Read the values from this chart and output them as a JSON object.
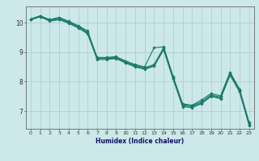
{
  "xlabel": "Humidex (Indice chaleur)",
  "bg_color": "#cce8e8",
  "grid_color": "#aacccc",
  "line_color": "#1a7a6a",
  "xlim": [
    -0.5,
    23.5
  ],
  "ylim": [
    6.4,
    10.55
  ],
  "yticks": [
    7,
    8,
    9,
    10
  ],
  "xticks": [
    0,
    1,
    2,
    3,
    4,
    5,
    6,
    7,
    8,
    9,
    10,
    11,
    12,
    13,
    14,
    15,
    16,
    17,
    18,
    19,
    20,
    21,
    22,
    23
  ],
  "series": [
    [
      10.12,
      10.23,
      10.1,
      10.18,
      10.05,
      9.9,
      9.72,
      8.82,
      8.82,
      8.85,
      8.7,
      8.58,
      8.5,
      9.15,
      9.18,
      8.18,
      7.25,
      7.2,
      7.38,
      7.6,
      7.52,
      8.32,
      7.75,
      6.62
    ],
    [
      10.12,
      10.23,
      10.1,
      10.15,
      10.02,
      9.88,
      9.68,
      8.8,
      8.8,
      8.82,
      8.67,
      8.55,
      8.47,
      8.58,
      9.15,
      8.15,
      7.22,
      7.18,
      7.32,
      7.55,
      7.48,
      8.28,
      7.7,
      6.58
    ],
    [
      10.1,
      10.2,
      10.08,
      10.12,
      10.0,
      9.85,
      9.65,
      8.78,
      8.78,
      8.8,
      8.65,
      8.52,
      8.44,
      8.55,
      9.12,
      8.12,
      7.18,
      7.15,
      7.28,
      7.52,
      7.45,
      8.25,
      7.67,
      6.55
    ],
    [
      10.1,
      10.2,
      10.05,
      10.1,
      9.98,
      9.82,
      9.62,
      8.75,
      8.75,
      8.78,
      8.63,
      8.5,
      8.42,
      8.52,
      9.08,
      8.08,
      7.15,
      7.12,
      7.25,
      7.5,
      7.42,
      8.22,
      7.65,
      6.52
    ]
  ]
}
